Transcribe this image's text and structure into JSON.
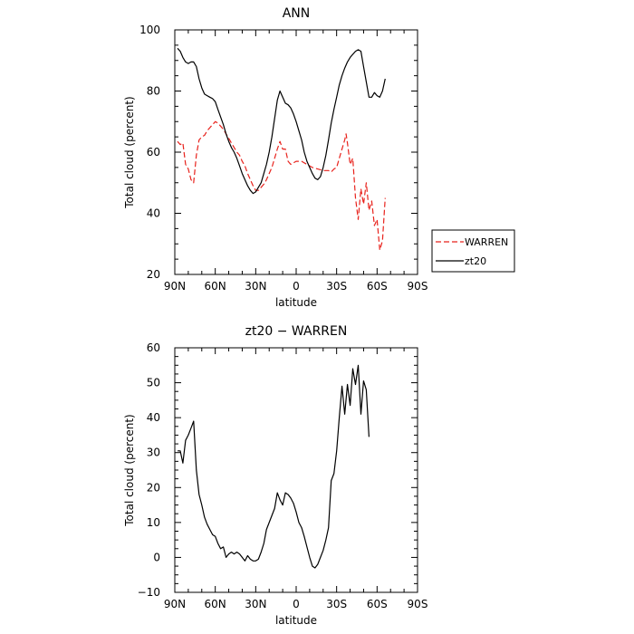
{
  "chart_data": [
    {
      "type": "line",
      "title": "ANN",
      "xlabel": "latitude",
      "ylabel": "Total cloud (percent)",
      "xlim": [
        90,
        -90
      ],
      "ylim": [
        20,
        100
      ],
      "x_ticks": [
        90,
        60,
        30,
        0,
        -30,
        -60,
        -90
      ],
      "x_tick_labels": [
        "90N",
        "60N",
        "30N",
        "0",
        "30S",
        "60S",
        "90S"
      ],
      "y_ticks": [
        20,
        40,
        60,
        80,
        100
      ],
      "y_tick_labels": [
        "20",
        "40",
        "60",
        "80",
        "100"
      ],
      "legend": "outside-right",
      "series": [
        {
          "name": "WARREN",
          "color": "#e8221c",
          "dash": "dashed",
          "points": [
            [
              88,
              63.5
            ],
            [
              86,
              62.5
            ],
            [
              84,
              63
            ],
            [
              82,
              56
            ],
            [
              80,
              54.5
            ],
            [
              78,
              51
            ],
            [
              76,
              50
            ],
            [
              74,
              59
            ],
            [
              72,
              64
            ],
            [
              70,
              65
            ],
            [
              68,
              65.5
            ],
            [
              66,
              67
            ],
            [
              64,
              68
            ],
            [
              62,
              69
            ],
            [
              60,
              70
            ],
            [
              58,
              69.5
            ],
            [
              56,
              68.5
            ],
            [
              54,
              67.5
            ],
            [
              52,
              66
            ],
            [
              50,
              64.5
            ],
            [
              48,
              63
            ],
            [
              46,
              61.5
            ],
            [
              44,
              60
            ],
            [
              42,
              59
            ],
            [
              40,
              57
            ],
            [
              38,
              55.5
            ],
            [
              36,
              53
            ],
            [
              34,
              51
            ],
            [
              32,
              49
            ],
            [
              30,
              47.5
            ],
            [
              28,
              47.5
            ],
            [
              26,
              48.5
            ],
            [
              24,
              49.5
            ],
            [
              22,
              51
            ],
            [
              20,
              53
            ],
            [
              18,
              55
            ],
            [
              16,
              58
            ],
            [
              14,
              61
            ],
            [
              12,
              63.5
            ],
            [
              10,
              61
            ],
            [
              8,
              61
            ],
            [
              6,
              57
            ],
            [
              4,
              56
            ],
            [
              2,
              56.5
            ],
            [
              0,
              57
            ],
            [
              -4,
              57
            ],
            [
              -8,
              56
            ],
            [
              -12,
              55
            ],
            [
              -16,
              54.5
            ],
            [
              -20,
              54
            ],
            [
              -24,
              54
            ],
            [
              -26,
              53.5
            ],
            [
              -28,
              54.5
            ],
            [
              -30,
              55
            ],
            [
              -32,
              58
            ],
            [
              -34,
              61
            ],
            [
              -36,
              64
            ],
            [
              -37,
              66
            ],
            [
              -38,
              63
            ],
            [
              -40,
              56
            ],
            [
              -42,
              58
            ],
            [
              -44,
              45
            ],
            [
              -46,
              38
            ],
            [
              -48,
              48
            ],
            [
              -50,
              43
            ],
            [
              -52,
              50
            ],
            [
              -54,
              41
            ],
            [
              -56,
              44
            ],
            [
              -58,
              36
            ],
            [
              -60,
              38
            ],
            [
              -62,
              28
            ],
            [
              -64,
              31
            ],
            [
              -66,
              45
            ]
          ]
        },
        {
          "name": "zt20",
          "color": "#000000",
          "dash": "solid",
          "points": [
            [
              88,
              94
            ],
            [
              86,
              93
            ],
            [
              84,
              91
            ],
            [
              82,
              89.5
            ],
            [
              80,
              89
            ],
            [
              78,
              89.5
            ],
            [
              76,
              89.5
            ],
            [
              74,
              88
            ],
            [
              72,
              84
            ],
            [
              70,
              81
            ],
            [
              68,
              79
            ],
            [
              66,
              78.5
            ],
            [
              64,
              78
            ],
            [
              62,
              77.5
            ],
            [
              60,
              76.5
            ],
            [
              58,
              74
            ],
            [
              56,
              71.5
            ],
            [
              54,
              69
            ],
            [
              52,
              66
            ],
            [
              50,
              63.5
            ],
            [
              48,
              61.5
            ],
            [
              46,
              60
            ],
            [
              44,
              58
            ],
            [
              42,
              55.5
            ],
            [
              40,
              53
            ],
            [
              38,
              51
            ],
            [
              36,
              49
            ],
            [
              34,
              47.5
            ],
            [
              32,
              46.5
            ],
            [
              30,
              47
            ],
            [
              28,
              48.5
            ],
            [
              26,
              50
            ],
            [
              24,
              53
            ],
            [
              22,
              56
            ],
            [
              20,
              60
            ],
            [
              18,
              65
            ],
            [
              16,
              71
            ],
            [
              14,
              77
            ],
            [
              12,
              80
            ],
            [
              10,
              78
            ],
            [
              8,
              76
            ],
            [
              6,
              75.5
            ],
            [
              4,
              74.5
            ],
            [
              2,
              72.5
            ],
            [
              0,
              70
            ],
            [
              -2,
              67
            ],
            [
              -4,
              64
            ],
            [
              -6,
              60
            ],
            [
              -8,
              57
            ],
            [
              -10,
              55
            ],
            [
              -12,
              53
            ],
            [
              -14,
              51.5
            ],
            [
              -16,
              51
            ],
            [
              -18,
              52
            ],
            [
              -20,
              55
            ],
            [
              -22,
              59
            ],
            [
              -24,
              64
            ],
            [
              -26,
              69.5
            ],
            [
              -28,
              74
            ],
            [
              -30,
              78
            ],
            [
              -32,
              82
            ],
            [
              -34,
              85
            ],
            [
              -36,
              87.5
            ],
            [
              -38,
              89.5
            ],
            [
              -40,
              91
            ],
            [
              -42,
              92
            ],
            [
              -44,
              93
            ],
            [
              -46,
              93.5
            ],
            [
              -48,
              93
            ],
            [
              -50,
              88
            ],
            [
              -52,
              83
            ],
            [
              -54,
              78
            ],
            [
              -56,
              78
            ],
            [
              -58,
              79.5
            ],
            [
              -60,
              78.5
            ],
            [
              -62,
              78
            ],
            [
              -64,
              80
            ],
            [
              -66,
              84
            ]
          ]
        }
      ]
    },
    {
      "type": "line",
      "title": "zt20 − WARREN",
      "xlabel": "latitude",
      "ylabel": "Total cloud (percent)",
      "xlim": [
        90,
        -90
      ],
      "ylim": [
        -10,
        60
      ],
      "x_ticks": [
        90,
        60,
        30,
        0,
        -30,
        -60,
        -90
      ],
      "x_tick_labels": [
        "90N",
        "60N",
        "30N",
        "0",
        "30S",
        "60S",
        "90S"
      ],
      "y_ticks": [
        -10,
        0,
        10,
        20,
        30,
        40,
        50,
        60
      ],
      "y_tick_labels": [
        "−10",
        "0",
        "10",
        "20",
        "30",
        "40",
        "50",
        "60"
      ],
      "series": [
        {
          "color": "#000000",
          "dash": "solid",
          "points": [
            [
              88,
              30.5
            ],
            [
              86,
              30.5
            ],
            [
              84,
              27
            ],
            [
              82,
              33.5
            ],
            [
              80,
              35
            ],
            [
              78,
              37
            ],
            [
              76,
              39
            ],
            [
              74,
              25
            ],
            [
              72,
              18
            ],
            [
              70,
              15
            ],
            [
              68,
              11.5
            ],
            [
              66,
              9.5
            ],
            [
              64,
              8
            ],
            [
              62,
              6.5
            ],
            [
              60,
              6
            ],
            [
              58,
              4
            ],
            [
              56,
              2.5
            ],
            [
              54,
              3
            ],
            [
              52,
              0
            ],
            [
              50,
              1
            ],
            [
              48,
              1.5
            ],
            [
              46,
              1
            ],
            [
              44,
              1.5
            ],
            [
              42,
              1
            ],
            [
              40,
              0
            ],
            [
              38,
              -1
            ],
            [
              36,
              0.5
            ],
            [
              34,
              -0.5
            ],
            [
              32,
              -1
            ],
            [
              30,
              -1
            ],
            [
              28,
              -0.5
            ],
            [
              26,
              1.5
            ],
            [
              24,
              4
            ],
            [
              22,
              8
            ],
            [
              20,
              10
            ],
            [
              18,
              12
            ],
            [
              16,
              14
            ],
            [
              14,
              18.5
            ],
            [
              12,
              16.5
            ],
            [
              10,
              15
            ],
            [
              8,
              18.5
            ],
            [
              6,
              18
            ],
            [
              4,
              17
            ],
            [
              2,
              15.5
            ],
            [
              0,
              13
            ],
            [
              -2,
              10
            ],
            [
              -4,
              8.5
            ],
            [
              -6,
              6
            ],
            [
              -8,
              3
            ],
            [
              -10,
              0
            ],
            [
              -12,
              -2.5
            ],
            [
              -14,
              -3
            ],
            [
              -16,
              -2
            ],
            [
              -18,
              0
            ],
            [
              -20,
              2
            ],
            [
              -22,
              5
            ],
            [
              -24,
              8.5
            ],
            [
              -26,
              22
            ],
            [
              -28,
              24
            ],
            [
              -30,
              30.5
            ],
            [
              -32,
              40
            ],
            [
              -34,
              49
            ],
            [
              -36,
              41
            ],
            [
              -38,
              49.5
            ],
            [
              -40,
              43.5
            ],
            [
              -42,
              54
            ],
            [
              -44,
              49.5
            ],
            [
              -46,
              55
            ],
            [
              -48,
              41
            ],
            [
              -50,
              50.5
            ],
            [
              -52,
              48
            ],
            [
              -54,
              34.5
            ]
          ]
        }
      ]
    }
  ]
}
